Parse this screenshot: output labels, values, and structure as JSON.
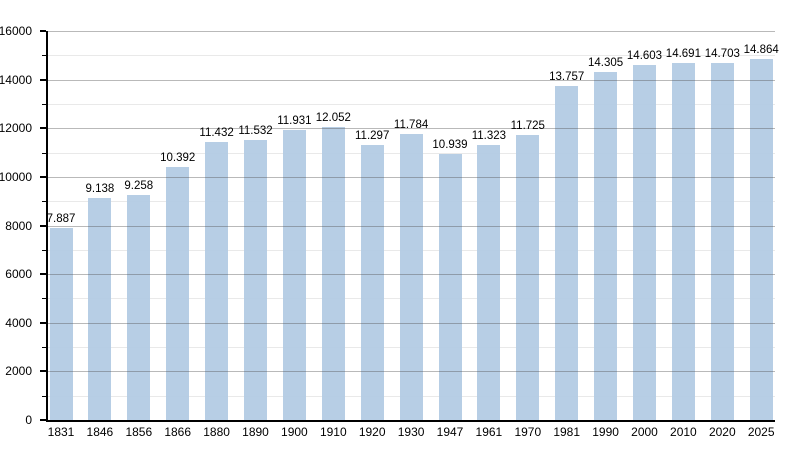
{
  "figure": {
    "background": "#ffffff"
  },
  "chart_data": {
    "type": "bar",
    "title": "",
    "xlabel": "",
    "ylabel": "",
    "categories": [
      "1831",
      "1846",
      "1856",
      "1866",
      "1880",
      "1890",
      "1900",
      "1910",
      "1920",
      "1930",
      "1947",
      "1961",
      "1970",
      "1981",
      "1990",
      "2000",
      "2010",
      "2020",
      "2025"
    ],
    "values": [
      7887,
      9138,
      9258,
      10392,
      11432,
      11532,
      11931,
      12052,
      11297,
      11784,
      10939,
      11323,
      11725,
      13757,
      14305,
      14603,
      14691,
      14703,
      14864
    ],
    "value_labels": [
      "7.887",
      "9.138",
      "9.258",
      "10.392",
      "11.432",
      "11.532",
      "11.931",
      "12.052",
      "11.297",
      "11.784",
      "10.939",
      "11.323",
      "11.725",
      "13.757",
      "14.305",
      "14.603",
      "14.691",
      "14.703",
      "14.864"
    ],
    "ylim": [
      0,
      16000
    ],
    "y_major_tick_step": 2000,
    "y_minor_tick_step": 1000,
    "y_major_tick_labels": [
      "0",
      "2000",
      "4000",
      "6000",
      "8000",
      "10000",
      "12000",
      "14000",
      "16000"
    ],
    "grid": true,
    "legend": null,
    "colors": {
      "bar_fill": "rgba(179, 203, 228, 0.95)",
      "gridline_major": "rgba(80, 80, 80, 0.40)",
      "gridline_minor": "#e9e9e9",
      "axis": "#000000",
      "text": "#000000"
    }
  }
}
